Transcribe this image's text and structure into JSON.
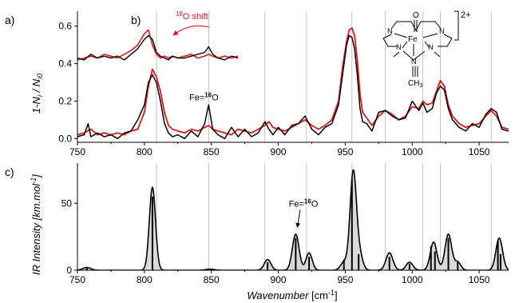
{
  "chart_data": [
    {
      "id": "a",
      "panel_label": "a)",
      "type": "line",
      "ylabel": "1-N",
      "ylabel_sub1": "i",
      "ylabel_mid": " / N",
      "ylabel_sub2": "i0",
      "xlim": [
        750,
        1072
      ],
      "ylim": [
        -0.02,
        0.68
      ],
      "xticks": [
        "750",
        "800",
        "850",
        "900",
        "950",
        "1000",
        "1050"
      ],
      "yticks": [
        "0.0",
        "0.2",
        "0.4",
        "0.6"
      ],
      "ref_lines_x": [
        809,
        848,
        890,
        921,
        955,
        980,
        1008,
        1021,
        1059
      ],
      "annotation_fe16o": {
        "prefix": "Fe=",
        "sup": "16",
        "suffix": "O",
        "x": 848,
        "y": 0.17
      },
      "molecule": {
        "charge": "2+",
        "o_label": "O",
        "fe_label": "Fe",
        "n_label": "N",
        "ch3_label": "CH",
        "ch3_sub": "3"
      },
      "series": [
        {
          "color": "#e8141c",
          "x": [
            750,
            755,
            760,
            765,
            770,
            775,
            780,
            785,
            790,
            795,
            800,
            803,
            806,
            809,
            812,
            815,
            818,
            821,
            825,
            830,
            835,
            840,
            845,
            848,
            851,
            855,
            860,
            865,
            870,
            875,
            880,
            885,
            890,
            893,
            896,
            900,
            905,
            910,
            915,
            920,
            925,
            930,
            935,
            940,
            945,
            948,
            951,
            953,
            955,
            957,
            959,
            961,
            963,
            966,
            970,
            975,
            980,
            985,
            990,
            995,
            1000,
            1005,
            1008,
            1011,
            1015,
            1018,
            1021,
            1024,
            1027,
            1030,
            1035,
            1040,
            1045,
            1050,
            1055,
            1059,
            1063,
            1067,
            1072
          ],
          "y": [
            0.02,
            0.03,
            0.05,
            0.02,
            0.03,
            0.02,
            0.03,
            0.02,
            0.04,
            0.05,
            0.14,
            0.28,
            0.37,
            0.33,
            0.25,
            0.14,
            0.07,
            0.05,
            0.04,
            0.03,
            0.05,
            0.04,
            0.06,
            0.07,
            0.05,
            0.04,
            0.03,
            0.02,
            0.05,
            0.04,
            0.03,
            0.05,
            0.07,
            0.09,
            0.06,
            0.05,
            0.04,
            0.06,
            0.08,
            0.1,
            0.07,
            0.05,
            0.07,
            0.1,
            0.2,
            0.38,
            0.52,
            0.58,
            0.59,
            0.55,
            0.42,
            0.24,
            0.14,
            0.11,
            0.07,
            0.12,
            0.15,
            0.13,
            0.1,
            0.12,
            0.17,
            0.16,
            0.2,
            0.18,
            0.19,
            0.25,
            0.31,
            0.28,
            0.18,
            0.12,
            0.08,
            0.06,
            0.07,
            0.08,
            0.12,
            0.15,
            0.12,
            0.06,
            0.05
          ]
        },
        {
          "color": "#000000",
          "x": [
            750,
            755,
            758,
            760,
            765,
            770,
            775,
            780,
            785,
            790,
            795,
            800,
            803,
            806,
            809,
            812,
            815,
            818,
            821,
            825,
            830,
            835,
            840,
            845,
            848,
            851,
            855,
            860,
            865,
            870,
            875,
            880,
            885,
            890,
            893,
            896,
            900,
            905,
            910,
            915,
            920,
            925,
            930,
            935,
            940,
            945,
            948,
            951,
            953,
            955,
            957,
            959,
            961,
            963,
            966,
            970,
            975,
            980,
            985,
            990,
            995,
            1000,
            1005,
            1008,
            1011,
            1015,
            1018,
            1021,
            1024,
            1027,
            1030,
            1035,
            1040,
            1045,
            1050,
            1055,
            1059,
            1063,
            1067,
            1072
          ],
          "y": [
            0.01,
            0.02,
            0.08,
            0.01,
            0.03,
            0.01,
            0.02,
            0.0,
            0.03,
            0.04,
            0.1,
            0.18,
            0.3,
            0.34,
            0.3,
            0.2,
            0.08,
            0.03,
            0.01,
            0.02,
            0.0,
            0.04,
            0.01,
            0.08,
            0.18,
            0.05,
            0.02,
            0.0,
            0.06,
            0.01,
            0.05,
            0.01,
            0.03,
            0.09,
            0.05,
            0.02,
            0.06,
            0.02,
            0.07,
            0.08,
            0.12,
            0.05,
            0.02,
            0.06,
            0.08,
            0.18,
            0.34,
            0.5,
            0.55,
            0.54,
            0.48,
            0.34,
            0.16,
            0.09,
            0.08,
            0.04,
            0.14,
            0.15,
            0.12,
            0.1,
            0.11,
            0.2,
            0.15,
            0.19,
            0.14,
            0.16,
            0.24,
            0.28,
            0.26,
            0.16,
            0.1,
            0.06,
            0.04,
            0.08,
            0.06,
            0.13,
            0.16,
            0.14,
            0.05,
            0.04
          ]
        }
      ]
    },
    {
      "id": "b",
      "panel_label": "b)",
      "type": "line",
      "inset": true,
      "xlim": [
        750,
        1072
      ],
      "ylim": [
        -0.02,
        0.68
      ],
      "shift_label": {
        "sup": "18",
        "suffix": "O shift"
      },
      "series": [
        {
          "color": "#e8141c",
          "x": [
            750,
            755,
            760,
            765,
            770,
            775,
            780,
            785,
            790,
            795,
            800,
            803,
            806,
            809,
            812,
            815,
            818,
            821,
            825,
            830,
            835,
            840,
            845,
            848,
            851,
            855,
            860,
            865,
            870
          ],
          "y": [
            0.42,
            0.43,
            0.44,
            0.43,
            0.45,
            0.44,
            0.43,
            0.45,
            0.47,
            0.5,
            0.56,
            0.58,
            0.5,
            0.45,
            0.43,
            0.44,
            0.43,
            0.44,
            0.43,
            0.44,
            0.45,
            0.43,
            0.44,
            0.45,
            0.44,
            0.43,
            0.44,
            0.43,
            0.44
          ]
        },
        {
          "color": "#000000",
          "x": [
            750,
            755,
            760,
            765,
            770,
            775,
            780,
            785,
            790,
            795,
            800,
            803,
            806,
            809,
            812,
            815,
            818,
            821,
            825,
            830,
            835,
            840,
            845,
            848,
            851,
            855,
            860,
            865,
            870
          ],
          "y": [
            0.43,
            0.42,
            0.45,
            0.43,
            0.44,
            0.43,
            0.44,
            0.42,
            0.45,
            0.48,
            0.53,
            0.55,
            0.53,
            0.46,
            0.44,
            0.43,
            0.42,
            0.44,
            0.43,
            0.43,
            0.44,
            0.45,
            0.46,
            0.49,
            0.45,
            0.43,
            0.42,
            0.44,
            0.43
          ]
        }
      ]
    },
    {
      "id": "c",
      "panel_label": "c)",
      "type": "line",
      "xlabel": "Wavenumber",
      "xlabel_unit": "[cm",
      "xlabel_unit_sup": "-1",
      "xlabel_unit_end": "]",
      "ylabel": "IR Intensity [km.mol",
      "ylabel_sup": "-1",
      "ylabel_end": "]",
      "xlim": [
        750,
        1072
      ],
      "ylim": [
        0,
        80
      ],
      "xticks": [
        "750",
        "800",
        "850",
        "900",
        "950",
        "1000",
        "1050"
      ],
      "yticks": [
        "0",
        "50"
      ],
      "ref_lines_x": [
        809,
        848,
        890,
        921,
        955,
        980,
        1008,
        1021,
        1059
      ],
      "annotation_fe16o": {
        "prefix": "Fe=",
        "sup": "16",
        "suffix": "O",
        "x": 914,
        "y": 50,
        "arrow_to_x": 913,
        "arrow_to_y": 32
      },
      "sticks": [
        {
          "x": 757,
          "h": 2
        },
        {
          "x": 806,
          "h": 55
        },
        {
          "x": 849,
          "h": 0.6
        },
        {
          "x": 892,
          "h": 6
        },
        {
          "x": 913,
          "h": 24
        },
        {
          "x": 923,
          "h": 10
        },
        {
          "x": 949,
          "h": 8
        },
        {
          "x": 955,
          "h": 68
        },
        {
          "x": 960,
          "h": 12
        },
        {
          "x": 983,
          "h": 10
        },
        {
          "x": 998,
          "h": 5
        },
        {
          "x": 1014,
          "h": 18
        },
        {
          "x": 1017,
          "h": 14
        },
        {
          "x": 1027,
          "h": 24
        },
        {
          "x": 1034,
          "h": 6
        },
        {
          "x": 1064,
          "h": 22
        },
        {
          "x": 1066,
          "h": 12
        }
      ],
      "peaks": [
        {
          "x": 757,
          "h": 2,
          "w": 3
        },
        {
          "x": 806,
          "h": 62,
          "w": 2.3
        },
        {
          "x": 849,
          "h": 0.8,
          "w": 3
        },
        {
          "x": 892,
          "h": 8,
          "w": 2.5
        },
        {
          "x": 913,
          "h": 27,
          "w": 2.5
        },
        {
          "x": 923,
          "h": 13,
          "w": 2.3
        },
        {
          "x": 949,
          "h": 6,
          "w": 2.5
        },
        {
          "x": 956,
          "h": 74,
          "w": 2.4
        },
        {
          "x": 961,
          "h": 10,
          "w": 2.3
        },
        {
          "x": 983,
          "h": 13,
          "w": 2.6
        },
        {
          "x": 998,
          "h": 6,
          "w": 2.5
        },
        {
          "x": 1016,
          "h": 21,
          "w": 2.5
        },
        {
          "x": 1027,
          "h": 27,
          "w": 2.5
        },
        {
          "x": 1034,
          "h": 6,
          "w": 2.3
        },
        {
          "x": 1065,
          "h": 24,
          "w": 2.5
        }
      ]
    }
  ]
}
